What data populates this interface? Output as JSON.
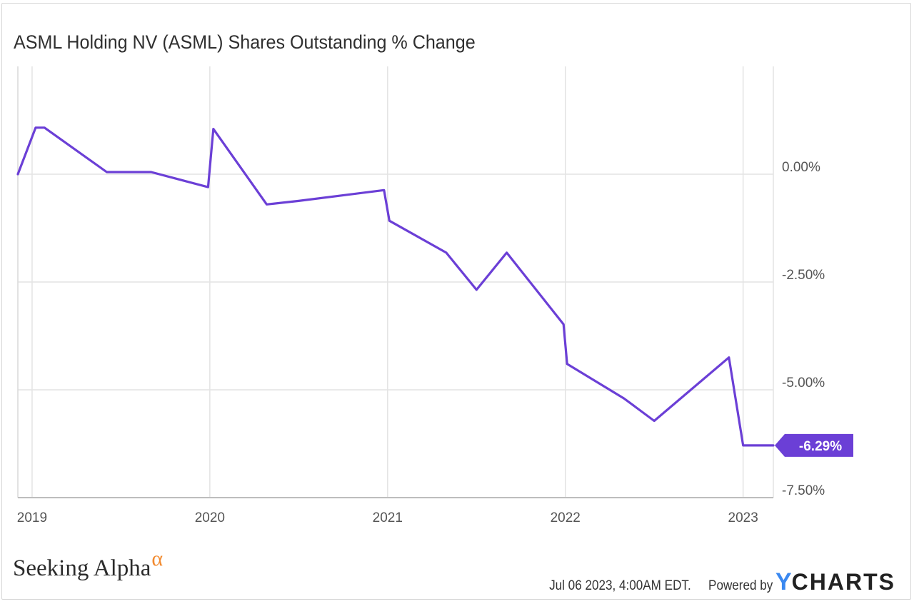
{
  "title": "ASML Holding NV (ASML) Shares Outstanding % Change",
  "chart_data": {
    "type": "line",
    "title": "ASML Holding NV (ASML) Shares Outstanding % Change",
    "xlabel": "",
    "ylabel": "",
    "x_tick_labels": [
      "2019",
      "2020",
      "2021",
      "2022",
      "2023"
    ],
    "x_tick_values": [
      2019.0,
      2020.0,
      2021.0,
      2022.0,
      2023.0
    ],
    "xlim": [
      2018.92,
      2023.17
    ],
    "y_tick_labels": [
      "0.00%",
      "-2.50%",
      "-5.00%",
      "-7.50%"
    ],
    "y_tick_values": [
      0,
      -2.5,
      -5,
      -7.5
    ],
    "ylim": [
      -7.5,
      2.5
    ],
    "grid": true,
    "series": [
      {
        "color": "#6b3fd6",
        "x": [
          2018.92,
          2019.02,
          2019.07,
          2019.42,
          2019.67,
          2019.99,
          2020.02,
          2020.32,
          2020.5,
          2020.98,
          2021.01,
          2021.33,
          2021.5,
          2021.67,
          2021.99,
          2022.01,
          2022.33,
          2022.5,
          2022.92,
          2023.0,
          2023.17
        ],
        "y": [
          0.0,
          1.08,
          1.08,
          0.05,
          0.05,
          -0.3,
          1.05,
          -0.7,
          -0.62,
          -0.37,
          -1.08,
          -1.82,
          -2.68,
          -1.82,
          -3.48,
          -4.4,
          -5.2,
          -5.72,
          -4.25,
          -6.29,
          -6.29
        ]
      }
    ],
    "last_value_label": "-6.29%"
  },
  "footer": {
    "brand": "Seeking Alpha",
    "brand_mark": "α",
    "timestamp": "Jul 06 2023, 4:00AM EDT.",
    "powered_by": "Powered by",
    "ycharts_y": "Y",
    "ycharts_rest": "CHARTS"
  }
}
